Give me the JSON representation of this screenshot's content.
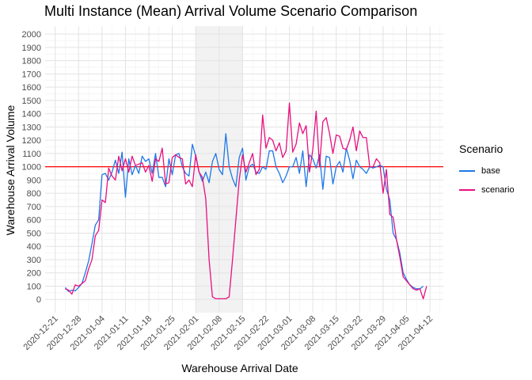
{
  "chart_data": {
    "type": "line",
    "title": "Multi Instance (Mean) Arrival Volume Scenario Comparison",
    "xlabel": "Warehouse Arrival Date",
    "ylabel": "Warehouse Arrival Volume",
    "x_ticks": [
      "2020-12-21",
      "2020-12-28",
      "2021-01-04",
      "2021-01-11",
      "2021-01-18",
      "2021-01-25",
      "2021-02-01",
      "2021-02-08",
      "2021-02-15",
      "2021-02-22",
      "2021-03-01",
      "2021-03-08",
      "2021-03-15",
      "2021-03-22",
      "2021-03-29",
      "2021-04-05",
      "2021-04-12"
    ],
    "xlim": [
      "2020-12-18",
      "2021-04-16"
    ],
    "ylim": [
      -100,
      2060
    ],
    "y_ticks": [
      0,
      100,
      200,
      300,
      400,
      500,
      600,
      700,
      800,
      900,
      1000,
      1100,
      1200,
      1300,
      1400,
      1500,
      1600,
      1700,
      1800,
      1900,
      2000
    ],
    "grid": true,
    "legend_title": "Scenario",
    "legend_position": "right",
    "reference_line": {
      "y": 1000,
      "color": "#ff0000"
    },
    "shaded_region": {
      "x_start": "2021-02-01",
      "x_end": "2021-02-15",
      "color": "#f2f2f2"
    },
    "series": [
      {
        "name": "base",
        "color": "#1f78e8",
        "points": [
          [
            "2020-12-24",
            90
          ],
          [
            "2020-12-25",
            60
          ],
          [
            "2020-12-26",
            70
          ],
          [
            "2020-12-27",
            65
          ],
          [
            "2020-12-28",
            90
          ],
          [
            "2020-12-29",
            120
          ],
          [
            "2020-12-30",
            200
          ],
          [
            "2020-12-31",
            290
          ],
          [
            "2021-01-01",
            420
          ],
          [
            "2021-01-02",
            560
          ],
          [
            "2021-01-03",
            600
          ],
          [
            "2021-01-04",
            940
          ],
          [
            "2021-01-05",
            950
          ],
          [
            "2021-01-06",
            900
          ],
          [
            "2021-01-07",
            960
          ],
          [
            "2021-01-08",
            1050
          ],
          [
            "2021-01-09",
            950
          ],
          [
            "2021-01-10",
            1110
          ],
          [
            "2021-01-11",
            770
          ],
          [
            "2021-01-12",
            1060
          ],
          [
            "2021-01-13",
            940
          ],
          [
            "2021-01-14",
            1010
          ],
          [
            "2021-01-15",
            950
          ],
          [
            "2021-01-16",
            1080
          ],
          [
            "2021-01-17",
            1040
          ],
          [
            "2021-01-18",
            1060
          ],
          [
            "2021-01-19",
            950
          ],
          [
            "2021-01-20",
            1100
          ],
          [
            "2021-01-21",
            920
          ],
          [
            "2021-01-22",
            920
          ],
          [
            "2021-01-23",
            850
          ],
          [
            "2021-01-24",
            1060
          ],
          [
            "2021-01-25",
            940
          ],
          [
            "2021-01-26",
            1090
          ],
          [
            "2021-01-27",
            1100
          ],
          [
            "2021-01-28",
            1000
          ],
          [
            "2021-01-29",
            950
          ],
          [
            "2021-01-30",
            930
          ],
          [
            "2021-01-31",
            1170
          ],
          [
            "2021-02-01",
            1080
          ],
          [
            "2021-02-02",
            960
          ],
          [
            "2021-02-03",
            890
          ],
          [
            "2021-02-04",
            960
          ],
          [
            "2021-02-05",
            880
          ],
          [
            "2021-02-06",
            1040
          ],
          [
            "2021-02-07",
            1100
          ],
          [
            "2021-02-08",
            980
          ],
          [
            "2021-02-09",
            940
          ],
          [
            "2021-02-10",
            1250
          ],
          [
            "2021-02-11",
            1000
          ],
          [
            "2021-02-12",
            910
          ],
          [
            "2021-02-13",
            850
          ],
          [
            "2021-02-14",
            1070
          ],
          [
            "2021-02-15",
            1140
          ],
          [
            "2021-02-16",
            900
          ],
          [
            "2021-02-17",
            1000
          ],
          [
            "2021-02-18",
            1020
          ],
          [
            "2021-02-19",
            960
          ],
          [
            "2021-02-20",
            950
          ],
          [
            "2021-02-21",
            1000
          ],
          [
            "2021-02-22",
            980
          ],
          [
            "2021-02-23",
            1120
          ],
          [
            "2021-02-24",
            1120
          ],
          [
            "2021-02-25",
            1000
          ],
          [
            "2021-02-26",
            950
          ],
          [
            "2021-02-27",
            880
          ],
          [
            "2021-02-28",
            930
          ],
          [
            "2021-03-01",
            1000
          ],
          [
            "2021-03-02",
            1000
          ],
          [
            "2021-03-03",
            1070
          ],
          [
            "2021-03-04",
            950
          ],
          [
            "2021-03-05",
            1120
          ],
          [
            "2021-03-06",
            850
          ],
          [
            "2021-03-07",
            1090
          ],
          [
            "2021-03-08",
            1060
          ],
          [
            "2021-03-09",
            990
          ],
          [
            "2021-03-10",
            1090
          ],
          [
            "2021-03-11",
            830
          ],
          [
            "2021-03-12",
            1080
          ],
          [
            "2021-03-13",
            1070
          ],
          [
            "2021-03-14",
            870
          ],
          [
            "2021-03-15",
            1000
          ],
          [
            "2021-03-16",
            1040
          ],
          [
            "2021-03-17",
            960
          ],
          [
            "2021-03-18",
            1140
          ],
          [
            "2021-03-19",
            1050
          ],
          [
            "2021-03-20",
            910
          ],
          [
            "2021-03-21",
            1050
          ],
          [
            "2021-03-22",
            1000
          ],
          [
            "2021-03-23",
            980
          ],
          [
            "2021-03-24",
            950
          ],
          [
            "2021-03-25",
            1000
          ],
          [
            "2021-03-26",
            990
          ],
          [
            "2021-03-27",
            1000
          ],
          [
            "2021-03-28",
            1010
          ],
          [
            "2021-03-29",
            1000
          ],
          [
            "2021-03-30",
            830
          ],
          [
            "2021-03-31",
            750
          ],
          [
            "2021-04-01",
            500
          ],
          [
            "2021-04-02",
            450
          ],
          [
            "2021-04-03",
            350
          ],
          [
            "2021-04-04",
            200
          ],
          [
            "2021-04-05",
            150
          ],
          [
            "2021-04-06",
            110
          ],
          [
            "2021-04-07",
            90
          ],
          [
            "2021-04-08",
            80
          ],
          [
            "2021-04-09",
            80
          ],
          [
            "2021-04-10",
            100
          ]
        ]
      },
      {
        "name": "scenario",
        "color": "#e8107f",
        "points": [
          [
            "2020-12-24",
            80
          ],
          [
            "2020-12-25",
            70
          ],
          [
            "2020-12-26",
            40
          ],
          [
            "2020-12-27",
            110
          ],
          [
            "2020-12-28",
            100
          ],
          [
            "2020-12-29",
            120
          ],
          [
            "2020-12-30",
            140
          ],
          [
            "2020-12-31",
            230
          ],
          [
            "2021-01-01",
            300
          ],
          [
            "2021-01-02",
            480
          ],
          [
            "2021-01-03",
            520
          ],
          [
            "2021-01-04",
            750
          ],
          [
            "2021-01-05",
            730
          ],
          [
            "2021-01-06",
            990
          ],
          [
            "2021-01-07",
            930
          ],
          [
            "2021-01-08",
            900
          ],
          [
            "2021-01-09",
            1080
          ],
          [
            "2021-01-10",
            970
          ],
          [
            "2021-01-11",
            1060
          ],
          [
            "2021-01-12",
            960
          ],
          [
            "2021-01-13",
            1080
          ],
          [
            "2021-01-14",
            1010
          ],
          [
            "2021-01-15",
            1020
          ],
          [
            "2021-01-16",
            1030
          ],
          [
            "2021-01-17",
            960
          ],
          [
            "2021-01-18",
            1010
          ],
          [
            "2021-01-19",
            890
          ],
          [
            "2021-01-20",
            1060
          ],
          [
            "2021-01-21",
            1040
          ],
          [
            "2021-01-22",
            1140
          ],
          [
            "2021-01-23",
            870
          ],
          [
            "2021-01-24",
            880
          ],
          [
            "2021-01-25",
            1070
          ],
          [
            "2021-01-26",
            1090
          ],
          [
            "2021-01-27",
            1070
          ],
          [
            "2021-01-28",
            1060
          ],
          [
            "2021-01-29",
            870
          ],
          [
            "2021-01-30",
            900
          ],
          [
            "2021-01-31",
            850
          ],
          [
            "2021-02-01",
            1090
          ],
          [
            "2021-02-02",
            960
          ],
          [
            "2021-02-03",
            920
          ],
          [
            "2021-02-04",
            760
          ],
          [
            "2021-02-05",
            300
          ],
          [
            "2021-02-06",
            20
          ],
          [
            "2021-02-07",
            5
          ],
          [
            "2021-02-08",
            5
          ],
          [
            "2021-02-09",
            5
          ],
          [
            "2021-02-10",
            5
          ],
          [
            "2021-02-11",
            20
          ],
          [
            "2021-02-12",
            300
          ],
          [
            "2021-02-13",
            600
          ],
          [
            "2021-02-14",
            900
          ],
          [
            "2021-02-15",
            1090
          ],
          [
            "2021-02-16",
            960
          ],
          [
            "2021-02-17",
            1030
          ],
          [
            "2021-02-18",
            1100
          ],
          [
            "2021-02-19",
            940
          ],
          [
            "2021-02-20",
            980
          ],
          [
            "2021-02-21",
            1390
          ],
          [
            "2021-02-22",
            1140
          ],
          [
            "2021-02-23",
            1220
          ],
          [
            "2021-02-24",
            1200
          ],
          [
            "2021-02-25",
            1120
          ],
          [
            "2021-02-26",
            1180
          ],
          [
            "2021-02-27",
            1070
          ],
          [
            "2021-02-28",
            1120
          ],
          [
            "2021-03-01",
            1480
          ],
          [
            "2021-03-02",
            1110
          ],
          [
            "2021-03-03",
            1170
          ],
          [
            "2021-03-04",
            1330
          ],
          [
            "2021-03-05",
            1250
          ],
          [
            "2021-03-06",
            1310
          ],
          [
            "2021-03-07",
            960
          ],
          [
            "2021-03-08",
            1130
          ],
          [
            "2021-03-09",
            1420
          ],
          [
            "2021-03-10",
            1000
          ],
          [
            "2021-03-11",
            1340
          ],
          [
            "2021-03-12",
            1370
          ],
          [
            "2021-03-13",
            1250
          ],
          [
            "2021-03-14",
            1100
          ],
          [
            "2021-03-15",
            1240
          ],
          [
            "2021-03-16",
            1230
          ],
          [
            "2021-03-17",
            1140
          ],
          [
            "2021-03-18",
            1130
          ],
          [
            "2021-03-19",
            1200
          ],
          [
            "2021-03-20",
            1300
          ],
          [
            "2021-03-21",
            1120
          ],
          [
            "2021-03-22",
            1270
          ],
          [
            "2021-03-23",
            1220
          ],
          [
            "2021-03-24",
            1220
          ],
          [
            "2021-03-25",
            1000
          ],
          [
            "2021-03-26",
            1000
          ],
          [
            "2021-03-27",
            1060
          ],
          [
            "2021-03-28",
            1030
          ],
          [
            "2021-03-29",
            800
          ],
          [
            "2021-03-30",
            980
          ],
          [
            "2021-03-31",
            640
          ],
          [
            "2021-04-01",
            620
          ],
          [
            "2021-04-02",
            450
          ],
          [
            "2021-04-03",
            320
          ],
          [
            "2021-04-04",
            170
          ],
          [
            "2021-04-05",
            140
          ],
          [
            "2021-04-06",
            110
          ],
          [
            "2021-04-07",
            80
          ],
          [
            "2021-04-08",
            70
          ],
          [
            "2021-04-09",
            80
          ],
          [
            "2021-04-10",
            5
          ],
          [
            "2021-04-11",
            100
          ]
        ]
      }
    ]
  }
}
